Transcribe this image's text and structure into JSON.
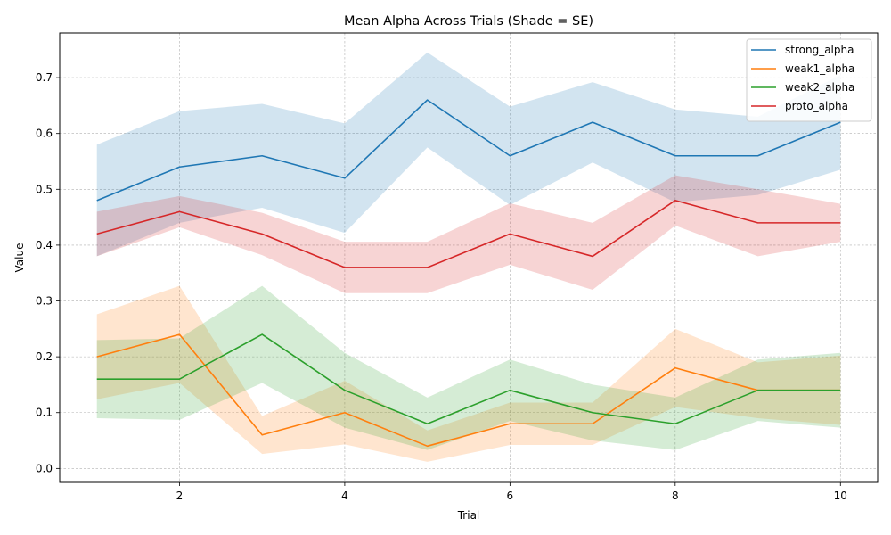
{
  "chart_data": {
    "type": "line",
    "title": "Mean Alpha Across Trials (Shade = SE)",
    "xlabel": "Trial",
    "ylabel": "Value",
    "x": [
      1,
      2,
      3,
      4,
      5,
      6,
      7,
      8,
      9,
      10
    ],
    "xlim": [
      0.55,
      10.45
    ],
    "ylim": [
      -0.025,
      0.78
    ],
    "xticks": [
      2,
      4,
      6,
      8,
      10
    ],
    "xtick_labels": [
      "2",
      "4",
      "6",
      "8",
      "10"
    ],
    "yticks": [
      0.0,
      0.1,
      0.2,
      0.3,
      0.4,
      0.5,
      0.6,
      0.7
    ],
    "ytick_labels": [
      "0.0",
      "0.1",
      "0.2",
      "0.3",
      "0.4",
      "0.5",
      "0.6",
      "0.7"
    ],
    "grid": true,
    "legend_position": "top-right",
    "band": "SE",
    "series": [
      {
        "name": "strong_alpha",
        "color": "#1f77b4",
        "values": [
          0.48,
          0.54,
          0.56,
          0.52,
          0.66,
          0.56,
          0.62,
          0.56,
          0.56,
          0.62
        ],
        "se": [
          0.1,
          0.1,
          0.093,
          0.098,
          0.085,
          0.088,
          0.072,
          0.083,
          0.07,
          0.085
        ]
      },
      {
        "name": "weak1_alpha",
        "color": "#ff7f0e",
        "values": [
          0.2,
          0.24,
          0.06,
          0.1,
          0.04,
          0.08,
          0.08,
          0.18,
          0.14,
          0.14
        ],
        "se": [
          0.076,
          0.087,
          0.034,
          0.057,
          0.028,
          0.038,
          0.038,
          0.07,
          0.05,
          0.062
        ]
      },
      {
        "name": "weak2_alpha",
        "color": "#2ca02c",
        "values": [
          0.16,
          0.16,
          0.24,
          0.14,
          0.08,
          0.14,
          0.1,
          0.08,
          0.14,
          0.14
        ],
        "se": [
          0.07,
          0.073,
          0.087,
          0.067,
          0.047,
          0.055,
          0.05,
          0.047,
          0.055,
          0.067
        ]
      },
      {
        "name": "proto_alpha",
        "color": "#d62728",
        "values": [
          0.42,
          0.46,
          0.42,
          0.36,
          0.36,
          0.42,
          0.38,
          0.48,
          0.44,
          0.44
        ],
        "se": [
          0.04,
          0.028,
          0.038,
          0.046,
          0.046,
          0.055,
          0.06,
          0.045,
          0.06,
          0.034
        ]
      }
    ]
  }
}
